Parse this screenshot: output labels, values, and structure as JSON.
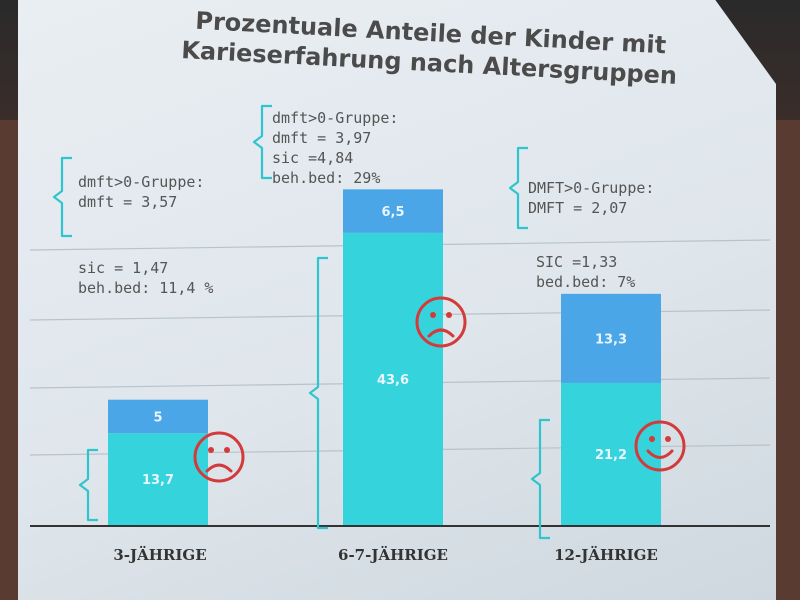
{
  "chart_data": {
    "type": "bar",
    "stacked": true,
    "title": "Prozentuale Anteile der Kinder mit Karieserfahrung nach Altersgruppen",
    "categories": [
      "3-JÄHRIGE",
      "6-7-JÄHRIGE",
      "12-JÄHRIGE"
    ],
    "series": [
      {
        "values": [
          13.7,
          43.6,
          21.2
        ],
        "labels": [
          "13,7",
          "43,6",
          "21,2"
        ],
        "color": "#35d3db"
      },
      {
        "values": [
          5,
          6.5,
          13.3
        ],
        "labels": [
          "5",
          "6,5",
          "13,3"
        ],
        "color": "#4aa6e6"
      }
    ],
    "ylim": [
      0,
      55
    ],
    "grid": true,
    "faces": [
      "sad",
      "sad",
      "happy"
    ],
    "annotations": [
      {
        "lines": [
          "dmft>0-Gruppe:",
          "dmft = 3,57"
        ]
      },
      {
        "lines": [
          "sic = 1,47",
          "beh.bed: 11,4 %"
        ]
      },
      {
        "lines": [
          "dmft>0-Gruppe:",
          "dmft = 3,97",
          "sic =4,84",
          "beh.bed: 29%"
        ]
      },
      {
        "lines": [
          "DMFT>0-Gruppe:",
          "DMFT = 2,07"
        ]
      },
      {
        "lines": [
          "SIC =1,33",
          "bed.bed: 7%"
        ]
      }
    ]
  },
  "colors": {
    "axis": "#333333",
    "grid": "#b9c2c9",
    "bracket": "#2fc5cf",
    "face": "#d43a3a",
    "label": "#e9f4ff"
  }
}
